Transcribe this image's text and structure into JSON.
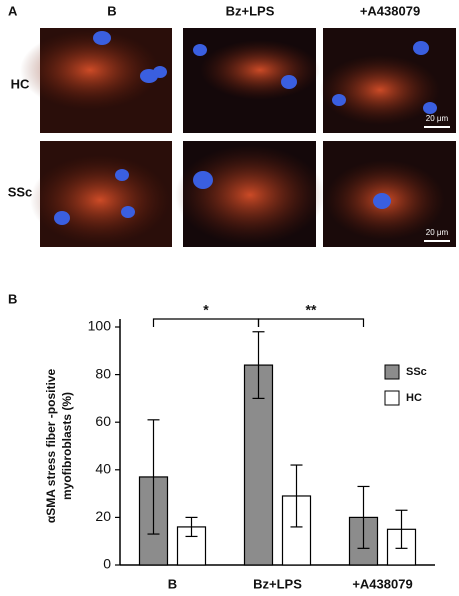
{
  "figure": {
    "panel_a": "A",
    "panel_b": "B",
    "columns": [
      "B",
      "Bz+LPS",
      "+A438079"
    ],
    "rows": [
      "HC",
      "SSc"
    ],
    "scale_bars": [
      "20 μm",
      "20 μm"
    ]
  },
  "chart_data": {
    "type": "bar",
    "ylabel": [
      "αSMA stress fiber -positive",
      "myofibroblasts (%)"
    ],
    "categories": [
      "B",
      "Bz+LPS",
      "+A438079"
    ],
    "series": [
      {
        "name": "SSc",
        "color": "#8c8c8c",
        "values": [
          37,
          84,
          20
        ],
        "errors": [
          24,
          14,
          13
        ]
      },
      {
        "name": "HC",
        "color": "#ffffff",
        "values": [
          16,
          29,
          15
        ],
        "errors": [
          4,
          13,
          8
        ]
      }
    ],
    "annotations": [
      "*",
      "**"
    ],
    "ylim": [
      0,
      100
    ],
    "yticks": [
      0,
      20,
      40,
      60,
      80,
      100
    ],
    "grid": false,
    "legend": "right"
  }
}
